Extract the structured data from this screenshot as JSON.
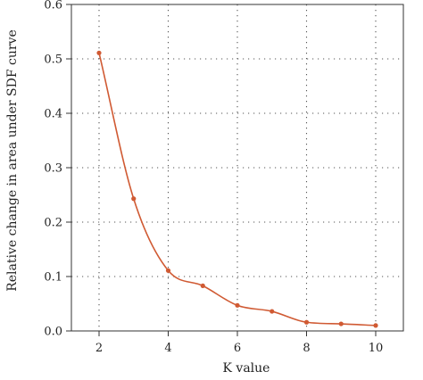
{
  "chart_data": {
    "type": "line",
    "x": [
      2,
      3,
      4,
      5,
      6,
      7,
      8,
      9,
      10
    ],
    "series": [
      {
        "values": [
          0.511,
          0.243,
          0.111,
          0.083,
          0.047,
          0.036,
          0.016,
          0.013,
          0.01
        ]
      }
    ],
    "xlabel": "K value",
    "ylabel": "Relative change in area under SDF curve",
    "xlim": [
      1.2,
      10.8
    ],
    "ylim": [
      0.0,
      0.6
    ],
    "xticks": [
      2,
      4,
      6,
      8,
      10
    ],
    "xtick_labels": [
      "2",
      "4",
      "6",
      "8",
      "10"
    ],
    "yticks": [
      0.0,
      0.1,
      0.2,
      0.3,
      0.4,
      0.5,
      0.6
    ],
    "ytick_labels": [
      "0.0",
      "0.1",
      "0.2",
      "0.3",
      "0.4",
      "0.5",
      "0.6"
    ],
    "grid": true,
    "grid_style": "dotted",
    "line_style": "smooth",
    "markers": true,
    "line_color": "#D05A33",
    "grid_color": "#555555",
    "axis_color": "#333333"
  }
}
